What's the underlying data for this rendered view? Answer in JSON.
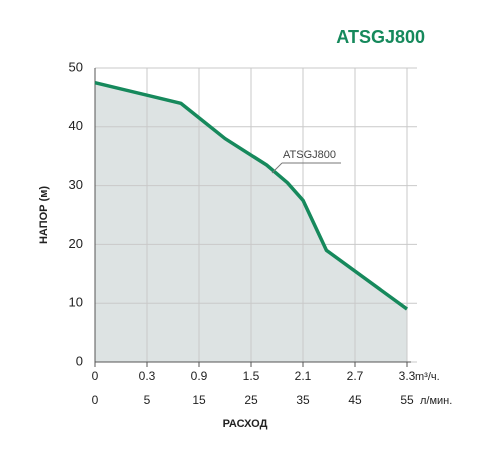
{
  "chart_data": {
    "type": "line",
    "title": "ATSGJ800",
    "ylabel": "НАПОР (м)",
    "xlabel": "РАСХОД",
    "x": [
      0,
      11.5,
      20,
      28,
      32,
      35,
      39.5,
      55
    ],
    "series": [
      {
        "name": "ATSGJ800",
        "color": "#16895c",
        "values": [
          47.5,
          44,
          38,
          33.5,
          30.5,
          27.5,
          19,
          9
        ]
      }
    ],
    "xlim": [
      0,
      55
    ],
    "xticks": [
      0,
      5,
      15,
      25,
      35,
      45,
      55
    ],
    "x_unit": "л/мин.",
    "x2lim": [
      0,
      3.3
    ],
    "x2ticks": [
      0,
      0.3,
      0.9,
      1.5,
      2.1,
      2.7,
      3.3
    ],
    "x2_unit": "m³/ч.",
    "ylim": [
      0,
      50
    ],
    "yticks": [
      0,
      10,
      20,
      30,
      40,
      50
    ],
    "grid": true,
    "area_color": "#dde3e3"
  }
}
